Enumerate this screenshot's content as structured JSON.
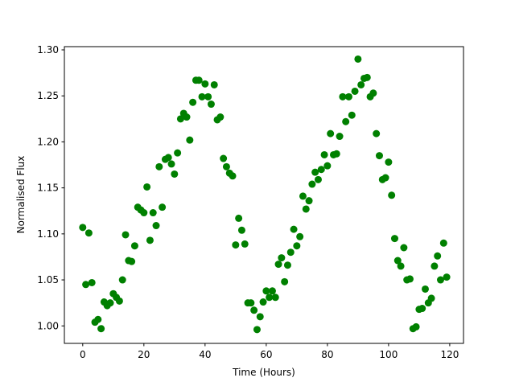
{
  "chart_data": {
    "type": "scatter",
    "x_label": "Time (Hours)",
    "y_label": "Normalised Flux",
    "color": "#008000",
    "x": [
      0,
      1,
      2,
      3,
      4,
      5,
      6,
      7,
      8,
      9,
      10,
      11,
      12,
      13,
      14,
      15,
      16,
      17,
      18,
      19,
      20,
      21,
      22,
      23,
      24,
      25,
      26,
      27,
      28,
      29,
      30,
      31,
      32,
      33,
      34,
      35,
      36,
      37,
      38,
      39,
      40,
      41,
      42,
      43,
      44,
      45,
      46,
      47,
      48,
      49,
      50,
      51,
      52,
      53,
      54,
      55,
      56,
      57,
      58,
      59,
      60,
      61,
      62,
      63,
      64,
      65,
      66,
      67,
      68,
      69,
      70,
      71,
      72,
      73,
      74,
      75,
      76,
      77,
      78,
      79,
      80,
      81,
      82,
      83,
      84,
      85,
      86,
      87,
      88,
      89,
      90,
      91,
      92,
      93,
      94,
      95,
      96,
      97,
      98,
      99,
      100,
      101,
      102,
      103,
      104,
      105,
      106,
      107,
      108,
      109,
      110,
      111,
      112,
      113,
      114,
      115,
      116,
      117,
      118,
      119
    ],
    "values": [
      1.107,
      1.045,
      1.101,
      1.047,
      1.004,
      1.007,
      0.997,
      1.026,
      1.022,
      1.025,
      1.035,
      1.031,
      1.027,
      1.05,
      1.099,
      1.071,
      1.07,
      1.087,
      1.129,
      1.126,
      1.123,
      1.151,
      1.093,
      1.123,
      1.109,
      1.173,
      1.129,
      1.181,
      1.183,
      1.176,
      1.165,
      1.188,
      1.225,
      1.231,
      1.227,
      1.202,
      1.243,
      1.267,
      1.267,
      1.249,
      1.263,
      1.249,
      1.241,
      1.262,
      1.224,
      1.227,
      1.182,
      1.173,
      1.166,
      1.163,
      1.088,
      1.117,
      1.104,
      1.089,
      1.025,
      1.025,
      1.017,
      0.996,
      1.01,
      1.026,
      1.038,
      1.031,
      1.038,
      1.031,
      1.067,
      1.074,
      1.048,
      1.066,
      1.08,
      1.105,
      1.087,
      1.097,
      1.141,
      1.127,
      1.136,
      1.154,
      1.167,
      1.159,
      1.17,
      1.186,
      1.174,
      1.209,
      1.186,
      1.187,
      1.206,
      1.249,
      1.222,
      1.249,
      1.229,
      1.255,
      1.29,
      1.262,
      1.269,
      1.27,
      1.249,
      1.253,
      1.209,
      1.185,
      1.159,
      1.161,
      1.178,
      1.142,
      1.095,
      1.071,
      1.065,
      1.085,
      1.05,
      1.051,
      0.997,
      0.999,
      1.018,
      1.019,
      1.04,
      1.025,
      1.03,
      1.065,
      1.076,
      1.05,
      1.09,
      1.053
    ],
    "xlim": [
      -6,
      124.5
    ],
    "xticks": [
      0,
      20,
      40,
      60,
      80,
      100,
      120
    ],
    "ylim": [
      0.981,
      1.3035
    ],
    "yticks": [
      {
        "value": 1,
        "label": "1.00"
      },
      1.05,
      {
        "value": 1.1,
        "label": "1.10"
      },
      1.15,
      {
        "value": 1.2,
        "label": "1.20"
      },
      1.25,
      {
        "value": 1.3,
        "label": "1.30"
      }
    ]
  }
}
